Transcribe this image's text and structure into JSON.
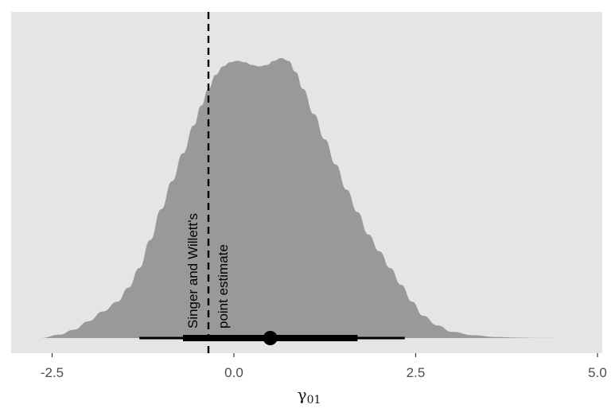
{
  "chart_data": {
    "type": "area",
    "title": "",
    "xlabel": "γ",
    "xlabel_subscript": "01",
    "ylabel": "",
    "xlim": [
      -3.0,
      5.0
    ],
    "x_ticks": [
      -2.5,
      0.0,
      2.5,
      5.0
    ],
    "x_tick_labels": [
      "-2.5",
      "0.0",
      "2.5",
      "5.0"
    ],
    "y_axis_shown": false,
    "grid": false,
    "panel_background": "#e5e5e5",
    "density": {
      "fill_color": "#999999",
      "x": [
        -2.65,
        -2.4,
        -2.2,
        -2.0,
        -1.8,
        -1.6,
        -1.45,
        -1.3,
        -1.15,
        -1.0,
        -0.85,
        -0.7,
        -0.55,
        -0.45,
        -0.35,
        -0.25,
        -0.15,
        -0.05,
        0.05,
        0.15,
        0.25,
        0.35,
        0.45,
        0.55,
        0.65,
        0.75,
        0.85,
        0.95,
        1.1,
        1.25,
        1.4,
        1.55,
        1.7,
        1.85,
        2.0,
        2.15,
        2.3,
        2.45,
        2.6,
        2.8,
        3.0,
        3.3,
        3.6,
        3.9,
        4.2,
        4.65
      ],
      "y": [
        0.0,
        0.012,
        0.03,
        0.06,
        0.095,
        0.13,
        0.18,
        0.25,
        0.35,
        0.46,
        0.56,
        0.66,
        0.76,
        0.83,
        0.89,
        0.94,
        0.97,
        0.985,
        0.99,
        0.985,
        0.975,
        0.97,
        0.975,
        0.99,
        1.0,
        0.99,
        0.95,
        0.89,
        0.8,
        0.71,
        0.62,
        0.53,
        0.45,
        0.37,
        0.31,
        0.25,
        0.19,
        0.13,
        0.08,
        0.045,
        0.022,
        0.01,
        0.004,
        0.0015,
        0.0005,
        0.0
      ]
    },
    "interval": {
      "point": 0.5,
      "inner": [
        -0.7,
        1.7
      ],
      "outer": [
        -1.3,
        2.35
      ]
    },
    "reference_line": {
      "x": -0.35,
      "style": "dashed",
      "label_lines": [
        "Singer and Willett's",
        "point estimate"
      ]
    }
  }
}
